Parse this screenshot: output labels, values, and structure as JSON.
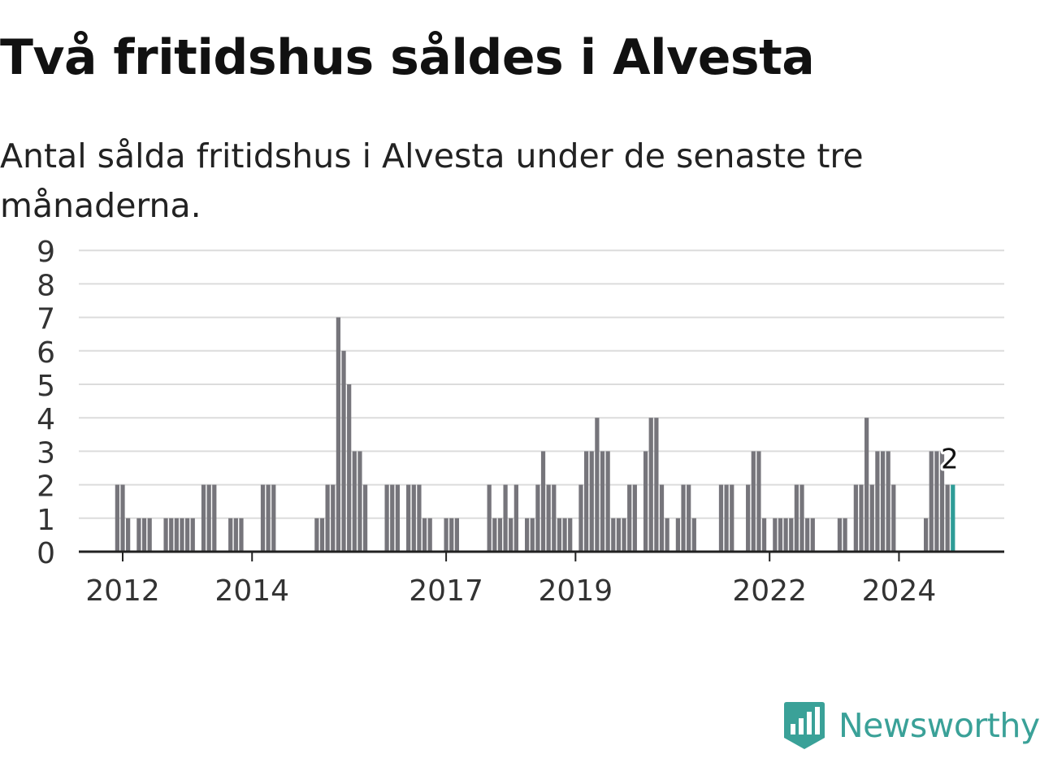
{
  "title": "Två fritidshus såldes i Alvesta",
  "subtitle": "Antal sålda fritidshus i Alvesta under de senaste tre månaderna.",
  "brand": {
    "name": "Newsworthy",
    "icon": "newsworthy-logo-icon"
  },
  "colors": {
    "bar": "#76757b",
    "highlight": "#2e9c97",
    "grid": "#dcdcdc",
    "axis": "#222222",
    "brand": "#3aa198"
  },
  "chart_data": {
    "type": "bar",
    "title": "",
    "xlabel": "",
    "ylabel": "",
    "ylim": [
      0,
      9
    ],
    "yticks": [
      "0",
      "1",
      "2",
      "3",
      "4",
      "5",
      "6",
      "7",
      "8",
      "9"
    ],
    "xticks": [
      {
        "label": "2012",
        "at": "2012-01"
      },
      {
        "label": "2014",
        "at": "2014-01"
      },
      {
        "label": "2017",
        "at": "2017-01"
      },
      {
        "label": "2019",
        "at": "2019-01"
      },
      {
        "label": "2022",
        "at": "2022-01"
      },
      {
        "label": "2024",
        "at": "2024-01"
      }
    ],
    "bars": [
      [
        "2011-12",
        2
      ],
      [
        "2012-01",
        2
      ],
      [
        "2012-02",
        1
      ],
      [
        "2012-04",
        1
      ],
      [
        "2012-05",
        1
      ],
      [
        "2012-06",
        1
      ],
      [
        "2012-09",
        1
      ],
      [
        "2012-10",
        1
      ],
      [
        "2012-11",
        1
      ],
      [
        "2012-12",
        1
      ],
      [
        "2013-01",
        1
      ],
      [
        "2013-02",
        1
      ],
      [
        "2013-04",
        2
      ],
      [
        "2013-05",
        2
      ],
      [
        "2013-06",
        2
      ],
      [
        "2013-09",
        1
      ],
      [
        "2013-10",
        1
      ],
      [
        "2013-11",
        1
      ],
      [
        "2014-03",
        2
      ],
      [
        "2014-04",
        2
      ],
      [
        "2014-05",
        2
      ],
      [
        "2015-01",
        1
      ],
      [
        "2015-02",
        1
      ],
      [
        "2015-03",
        2
      ],
      [
        "2015-04",
        2
      ],
      [
        "2015-05",
        7
      ],
      [
        "2015-06",
        6
      ],
      [
        "2015-07",
        5
      ],
      [
        "2015-08",
        3
      ],
      [
        "2015-09",
        3
      ],
      [
        "2015-10",
        2
      ],
      [
        "2016-02",
        2
      ],
      [
        "2016-03",
        2
      ],
      [
        "2016-04",
        2
      ],
      [
        "2016-06",
        2
      ],
      [
        "2016-07",
        2
      ],
      [
        "2016-08",
        2
      ],
      [
        "2016-09",
        1
      ],
      [
        "2016-10",
        1
      ],
      [
        "2017-01",
        1
      ],
      [
        "2017-02",
        1
      ],
      [
        "2017-03",
        1
      ],
      [
        "2017-09",
        2
      ],
      [
        "2017-10",
        1
      ],
      [
        "2017-11",
        1
      ],
      [
        "2017-12",
        2
      ],
      [
        "2018-01",
        1
      ],
      [
        "2018-02",
        2
      ],
      [
        "2018-04",
        1
      ],
      [
        "2018-05",
        1
      ],
      [
        "2018-06",
        2
      ],
      [
        "2018-07",
        3
      ],
      [
        "2018-08",
        2
      ],
      [
        "2018-09",
        2
      ],
      [
        "2018-10",
        1
      ],
      [
        "2018-11",
        1
      ],
      [
        "2018-12",
        1
      ],
      [
        "2019-02",
        2
      ],
      [
        "2019-03",
        3
      ],
      [
        "2019-04",
        3
      ],
      [
        "2019-05",
        4
      ],
      [
        "2019-06",
        3
      ],
      [
        "2019-07",
        3
      ],
      [
        "2019-08",
        1
      ],
      [
        "2019-09",
        1
      ],
      [
        "2019-10",
        1
      ],
      [
        "2019-11",
        2
      ],
      [
        "2019-12",
        2
      ],
      [
        "2020-02",
        3
      ],
      [
        "2020-03",
        4
      ],
      [
        "2020-04",
        4
      ],
      [
        "2020-05",
        2
      ],
      [
        "2020-06",
        1
      ],
      [
        "2020-08",
        1
      ],
      [
        "2020-09",
        2
      ],
      [
        "2020-10",
        2
      ],
      [
        "2020-11",
        1
      ],
      [
        "2021-04",
        2
      ],
      [
        "2021-05",
        2
      ],
      [
        "2021-06",
        2
      ],
      [
        "2021-09",
        2
      ],
      [
        "2021-10",
        3
      ],
      [
        "2021-11",
        3
      ],
      [
        "2021-12",
        1
      ],
      [
        "2022-02",
        1
      ],
      [
        "2022-03",
        1
      ],
      [
        "2022-04",
        1
      ],
      [
        "2022-05",
        1
      ],
      [
        "2022-06",
        2
      ],
      [
        "2022-07",
        2
      ],
      [
        "2022-08",
        1
      ],
      [
        "2022-09",
        1
      ],
      [
        "2023-02",
        1
      ],
      [
        "2023-03",
        1
      ],
      [
        "2023-05",
        2
      ],
      [
        "2023-06",
        2
      ],
      [
        "2023-07",
        4
      ],
      [
        "2023-08",
        2
      ],
      [
        "2023-09",
        3
      ],
      [
        "2023-10",
        3
      ],
      [
        "2023-11",
        3
      ],
      [
        "2023-12",
        2
      ],
      [
        "2024-06",
        1
      ],
      [
        "2024-07",
        3
      ],
      [
        "2024-08",
        3
      ],
      [
        "2024-09",
        3
      ],
      [
        "2024-10",
        2
      ],
      [
        "2024-11",
        2
      ]
    ],
    "highlight": {
      "at": "2024-11",
      "value": 2,
      "label": "2"
    }
  }
}
